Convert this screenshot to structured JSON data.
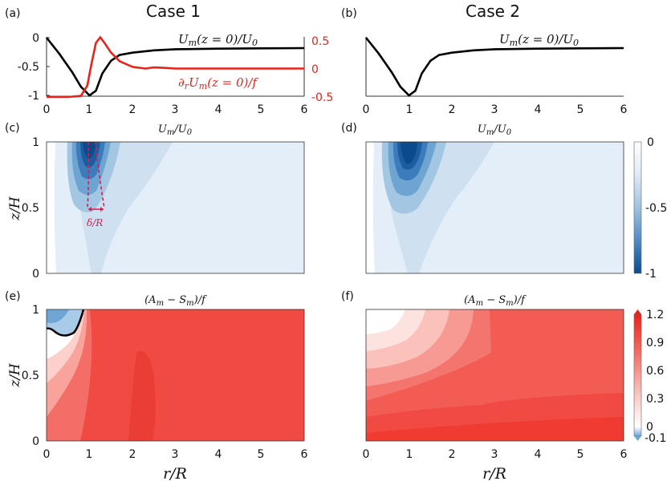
{
  "figure": {
    "case_labels": [
      "Case 1",
      "Case 2"
    ],
    "panel_letters": [
      "(a)",
      "(b)",
      "(c)",
      "(d)",
      "(e)",
      "(f)"
    ],
    "xlabel": "r/R",
    "ylabel": "z/H",
    "cd_title": "U_m/U_0",
    "ef_title": "(A_m − S_m)/f",
    "delta_label": "δ/R",
    "x_ticks": [
      "0",
      "1",
      "2",
      "3",
      "4",
      "5",
      "6"
    ],
    "a_left_ticks": [
      "0",
      "-0.5",
      "-1"
    ],
    "a_right_ticks": [
      "0.5",
      "0",
      "-0.5"
    ],
    "z_ticks": [
      "1",
      "0.5",
      "0"
    ],
    "cbar_top_ticks": [
      "0",
      "-0.5",
      "-1"
    ],
    "cbar_bottom_ticks": [
      "1.2",
      "0.9",
      "0.6",
      "0.3",
      "0",
      "-0.1"
    ]
  },
  "chart_data": [
    {
      "type": "line",
      "panel": "(a)",
      "xlim": [
        0,
        6
      ],
      "ylim": [
        -1,
        0
      ],
      "y2lim": [
        -0.5,
        0.5
      ],
      "series": [
        {
          "name": "U_m(z=0)/U_0",
          "axis": "left",
          "color": "#000000",
          "x": [
            0,
            0.3,
            0.6,
            0.8,
            1.0,
            1.15,
            1.3,
            1.5,
            1.7,
            2.0,
            2.5,
            3.0,
            4.0,
            5.0,
            6.0
          ],
          "y": [
            0,
            -0.28,
            -0.6,
            -0.85,
            -1.0,
            -0.92,
            -0.62,
            -0.4,
            -0.3,
            -0.26,
            -0.22,
            -0.2,
            -0.19,
            -0.185,
            -0.18
          ]
        },
        {
          "name": "∂_r U_m(z=0)/f",
          "axis": "right",
          "color": "#e8231a",
          "x": [
            0,
            0.5,
            0.8,
            0.95,
            1.05,
            1.15,
            1.25,
            1.35,
            1.5,
            1.7,
            2.0,
            2.3,
            2.5,
            2.8,
            3.0,
            4.0,
            5.0,
            6.0
          ],
          "y": [
            -0.5,
            -0.5,
            -0.48,
            -0.3,
            0.1,
            0.45,
            0.55,
            0.45,
            0.28,
            0.13,
            0.03,
            0.0,
            0.02,
            0.01,
            0.0,
            0.0,
            0.0,
            0.0
          ]
        }
      ]
    },
    {
      "type": "line",
      "panel": "(b)",
      "xlim": [
        0,
        6
      ],
      "ylim": [
        -1,
        0
      ],
      "series": [
        {
          "name": "U_m(z=0)/U_0",
          "color": "#000000",
          "x": [
            0,
            0.3,
            0.6,
            0.8,
            1.0,
            1.15,
            1.3,
            1.5,
            1.7,
            2.0,
            2.5,
            3.0,
            4.0,
            5.0,
            6.0
          ],
          "y": [
            0,
            -0.28,
            -0.6,
            -0.85,
            -1.0,
            -0.92,
            -0.62,
            -0.4,
            -0.3,
            -0.26,
            -0.22,
            -0.2,
            -0.19,
            -0.185,
            -0.18
          ]
        }
      ]
    },
    {
      "type": "heatmap",
      "panel": "(c)",
      "title": "U_m/U_0",
      "xlim": [
        0,
        6
      ],
      "ylim": [
        0,
        1
      ],
      "clim": [
        -1,
        0
      ],
      "colormap": "white-to-blue",
      "shape": "narrow vortex core, minimum near r/R=1, z/H≈0.85, tapering toward z=0",
      "annotation": "δ/R"
    },
    {
      "type": "heatmap",
      "panel": "(d)",
      "title": "U_m/U_0",
      "xlim": [
        0,
        6
      ],
      "ylim": [
        0,
        1
      ],
      "clim": [
        -1,
        0
      ],
      "colormap": "white-to-blue",
      "shape": "vortex core minimum near r/R=1, z/H≈0.85"
    },
    {
      "type": "heatmap",
      "panel": "(e)",
      "title": "(A_m − S_m)/f",
      "xlim": [
        0,
        6
      ],
      "ylim": [
        0,
        1
      ],
      "clim": [
        -0.1,
        1.2
      ],
      "colormap": "blue-white-red",
      "shape": "mostly ≈1, negative pocket near r/R<1, z/H>0.8 with black zero contour"
    },
    {
      "type": "heatmap",
      "panel": "(f)",
      "title": "(A_m − S_m)/f",
      "xlim": [
        0,
        6
      ],
      "ylim": [
        0,
        1
      ],
      "clim": [
        -0.1,
        1.2
      ],
      "colormap": "blue-white-red",
      "shape": "white near upper-left corner, increasing to red with depth and radius"
    }
  ],
  "colors": {
    "black_curve": "#000000",
    "red_curve": "#e8231a",
    "blue_dark": "#0b4a8b",
    "red_field": "#f04a42"
  }
}
